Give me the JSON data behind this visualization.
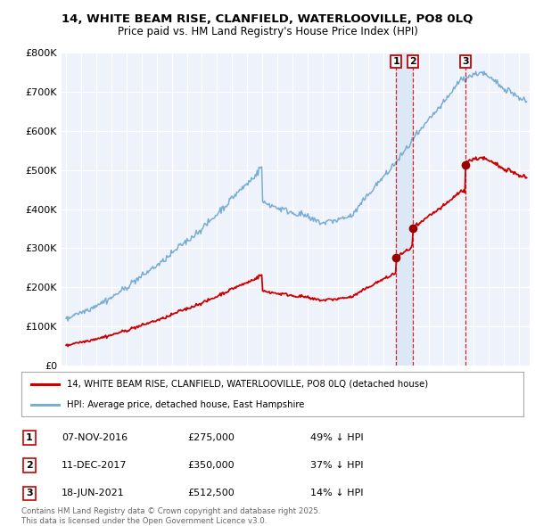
{
  "title_line1": "14, WHITE BEAM RISE, CLANFIELD, WATERLOOVILLE, PO8 0LQ",
  "title_line2": "Price paid vs. HM Land Registry's House Price Index (HPI)",
  "background_color": "#ffffff",
  "plot_bg_color": "#eef2fa",
  "grid_color": "#ffffff",
  "red_line_color": "#cc0000",
  "blue_line_color": "#7aadd4",
  "sale_marker_color": "#990000",
  "vline_color": "#cc0000",
  "shade_color": "#dce8f5",
  "sale_points": [
    {
      "date_num": 2016.86,
      "price": 275000,
      "label": "1"
    },
    {
      "date_num": 2017.95,
      "price": 350000,
      "label": "2"
    },
    {
      "date_num": 2021.46,
      "price": 512500,
      "label": "3"
    }
  ],
  "legend_entries": [
    "14, WHITE BEAM RISE, CLANFIELD, WATERLOOVILLE, PO8 0LQ (detached house)",
    "HPI: Average price, detached house, East Hampshire"
  ],
  "table_rows": [
    {
      "num": "1",
      "date": "07-NOV-2016",
      "price": "£275,000",
      "pct": "49% ↓ HPI"
    },
    {
      "num": "2",
      "date": "11-DEC-2017",
      "price": "£350,000",
      "pct": "37% ↓ HPI"
    },
    {
      "num": "3",
      "date": "18-JUN-2021",
      "price": "£512,500",
      "pct": "14% ↓ HPI"
    }
  ],
  "footer": "Contains HM Land Registry data © Crown copyright and database right 2025.\nThis data is licensed under the Open Government Licence v3.0.",
  "ylim": [
    0,
    800000
  ],
  "yticks": [
    0,
    100000,
    200000,
    300000,
    400000,
    500000,
    600000,
    700000,
    800000
  ],
  "ytick_labels": [
    "£0",
    "£100K",
    "£200K",
    "£300K",
    "£400K",
    "£500K",
    "£600K",
    "£700K",
    "£800K"
  ],
  "xlim_start": 1994.7,
  "xlim_end": 2025.7
}
